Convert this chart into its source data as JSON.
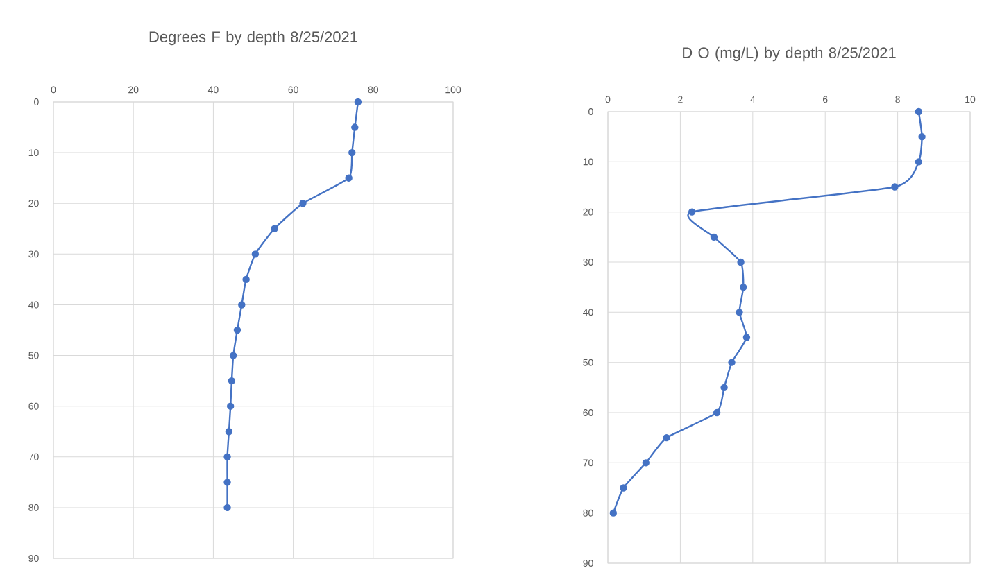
{
  "chart_data": [
    {
      "type": "line",
      "title": "Degrees F by depth 8/25/2021",
      "series": [
        {
          "color": "#4472c4",
          "x": [
            76.2,
            75.4,
            74.7,
            73.9,
            62.4,
            55.3,
            50.5,
            48.2,
            47.1,
            46.0,
            45.0,
            44.6,
            44.3,
            43.9,
            43.5,
            43.5,
            43.5
          ],
          "values": [
            0,
            5,
            10,
            15,
            20,
            25,
            30,
            35,
            40,
            45,
            50,
            55,
            60,
            65,
            70,
            75,
            80
          ]
        }
      ],
      "xlim": [
        0,
        100
      ],
      "xticks": [
        0,
        20,
        40,
        60,
        80,
        100
      ],
      "ylim": [
        90,
        0
      ],
      "yticks": [
        0,
        10,
        20,
        30,
        40,
        50,
        60,
        70,
        80,
        90
      ],
      "grid": true,
      "marker": "circle",
      "line_style": "solid"
    },
    {
      "type": "line",
      "title": "D O (mg/L) by depth 8/25/2021",
      "series": [
        {
          "color": "#4472c4",
          "x": [
            8.58,
            8.67,
            8.58,
            7.92,
            2.32,
            2.93,
            3.67,
            3.74,
            3.63,
            3.83,
            3.42,
            3.21,
            3.01,
            1.62,
            1.05,
            0.43,
            0.15
          ],
          "values": [
            0,
            5,
            10,
            15,
            20,
            25,
            30,
            35,
            40,
            45,
            50,
            55,
            60,
            65,
            70,
            75,
            80
          ]
        }
      ],
      "xlim": [
        0,
        10
      ],
      "xticks": [
        0,
        2,
        4,
        6,
        8,
        10
      ],
      "ylim": [
        90,
        0
      ],
      "yticks": [
        0,
        10,
        20,
        30,
        40,
        50,
        60,
        70,
        80,
        90
      ],
      "grid": true,
      "marker": "circle",
      "line_style": "solid"
    }
  ]
}
